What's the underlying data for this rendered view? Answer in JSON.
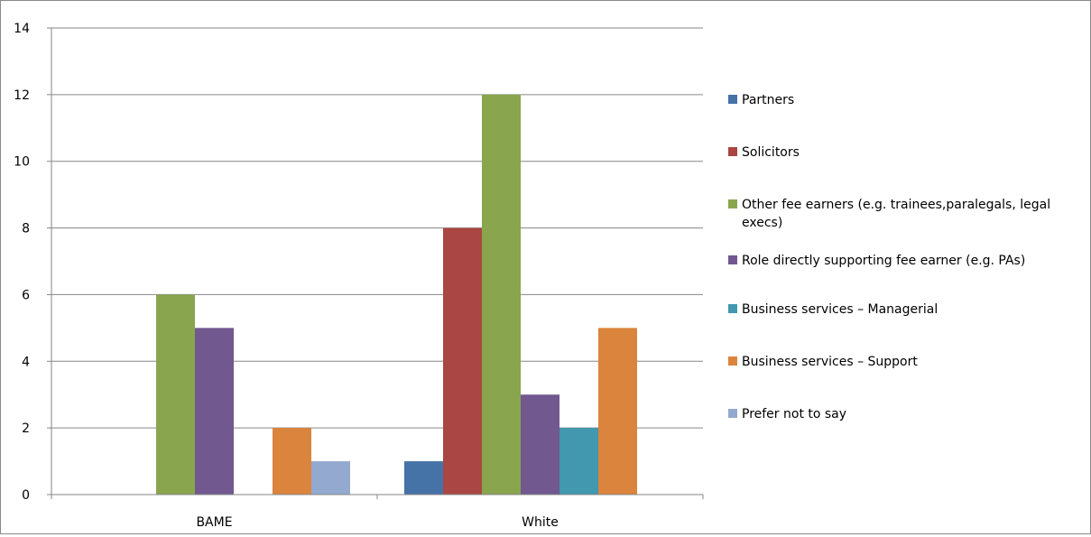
{
  "chart_data": {
    "type": "bar",
    "categories": [
      "BAME",
      "White"
    ],
    "series": [
      {
        "name": "Partners",
        "color": "#4572A7",
        "values": [
          0,
          1
        ]
      },
      {
        "name": "Solicitors",
        "color": "#AA4643",
        "values": [
          0,
          8
        ]
      },
      {
        "name": "Other fee earners (e.g. trainees,paralegals, legal execs)",
        "color": "#89A54E",
        "values": [
          6,
          12
        ]
      },
      {
        "name": "Role directly supporting fee earner (e.g. PAs)",
        "color": "#71588F",
        "values": [
          5,
          3
        ]
      },
      {
        "name": "Business services – Managerial",
        "color": "#4198AF",
        "values": [
          0,
          2
        ]
      },
      {
        "name": "Business services – Support",
        "color": "#DB843D",
        "values": [
          2,
          5
        ]
      },
      {
        "name": "Prefer not to say",
        "color": "#93A9CF",
        "values": [
          1,
          0
        ]
      }
    ],
    "yticks": [
      "0",
      "2",
      "4",
      "6",
      "8",
      "10",
      "12",
      "14"
    ],
    "ylim": [
      0,
      14
    ],
    "grid": true,
    "legend_position": "right",
    "title": "",
    "xlabel": "",
    "ylabel": ""
  }
}
